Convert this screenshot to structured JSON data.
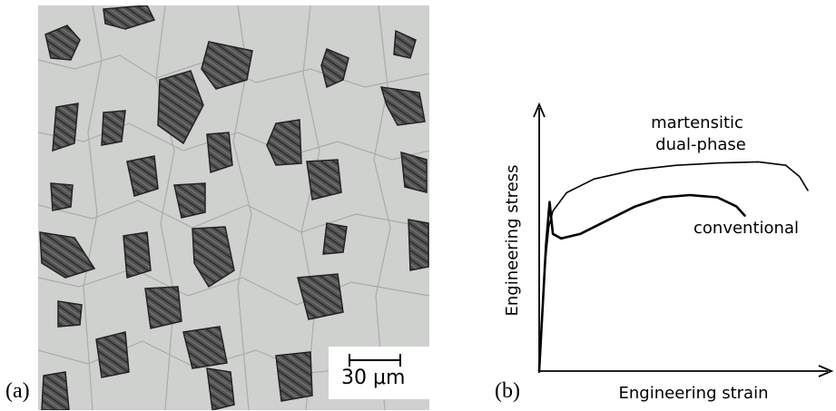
{
  "figure": {
    "panel_a_label": "(a)",
    "panel_b_label": "(b)"
  },
  "micrograph": {
    "scale_bar_label": "30 μm",
    "description_color_matrix": "#cfd1cf",
    "description_color_phase": "#4a4a4a"
  },
  "chart_data": {
    "type": "line",
    "xlabel": "Engineering strain",
    "ylabel": "Engineering stress",
    "ticks": "none",
    "series": [
      {
        "name": "martensitic dual-phase",
        "label_lines": [
          "martensitic",
          "dual-phase"
        ],
        "x": [
          0,
          0.02,
          0.035,
          0.05,
          0.1,
          0.2,
          0.35,
          0.5,
          0.65,
          0.8,
          0.9,
          0.95,
          0.98
        ],
        "y": [
          0,
          0.45,
          0.63,
          0.7,
          0.78,
          0.84,
          0.88,
          0.9,
          0.91,
          0.915,
          0.9,
          0.85,
          0.79
        ]
      },
      {
        "name": "conventional",
        "label_lines": [
          "conventional"
        ],
        "x": [
          0,
          0.025,
          0.038,
          0.043,
          0.05,
          0.08,
          0.15,
          0.25,
          0.35,
          0.45,
          0.55,
          0.65,
          0.72,
          0.75
        ],
        "y": [
          0,
          0.55,
          0.74,
          0.68,
          0.6,
          0.58,
          0.6,
          0.66,
          0.72,
          0.76,
          0.77,
          0.76,
          0.72,
          0.68
        ]
      }
    ]
  }
}
